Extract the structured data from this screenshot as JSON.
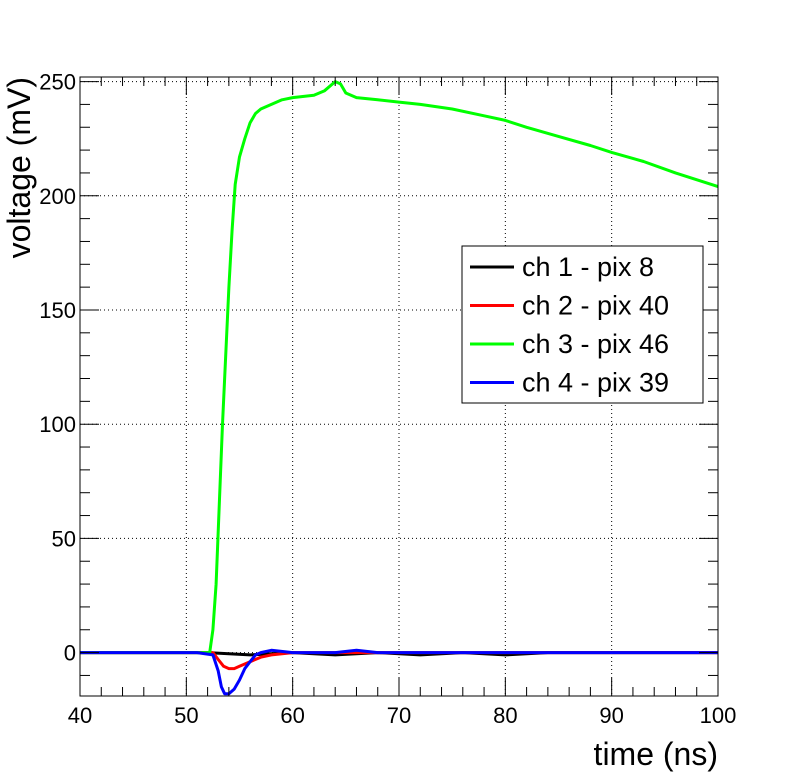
{
  "chart_data": {
    "type": "line",
    "title": "",
    "xlabel": "time (ns)",
    "ylabel": "voltage (mV)",
    "xlim": [
      40,
      100
    ],
    "ylim": [
      -19,
      252
    ],
    "x_ticks": [
      40,
      50,
      60,
      70,
      80,
      90,
      100
    ],
    "y_ticks": [
      0,
      50,
      100,
      150,
      200,
      250
    ],
    "grid": true,
    "grid_style": "dotted",
    "legend_position": "right, upper-middle",
    "series": [
      {
        "name": "ch 1 - pix 8",
        "color": "#000000",
        "x": [
          40,
          44,
          48,
          52,
          56,
          60,
          64,
          68,
          72,
          76,
          80,
          84,
          88,
          92,
          96,
          100
        ],
        "y": [
          0,
          0,
          0,
          0,
          -1,
          0,
          -1,
          0,
          -1,
          0,
          -1,
          0,
          0,
          0,
          0,
          0
        ]
      },
      {
        "name": "ch 2 - pix 40",
        "color": "#ff0000",
        "x": [
          40,
          44,
          48,
          51,
          52.5,
          53,
          53.5,
          54,
          54.5,
          55,
          56,
          57,
          58,
          60,
          64,
          68,
          72,
          76,
          80,
          84,
          88,
          92,
          96,
          100
        ],
        "y": [
          0,
          0,
          0,
          0,
          0,
          -3,
          -6,
          -7,
          -7,
          -6,
          -4,
          -2,
          -1,
          0,
          0,
          0,
          0,
          0,
          0,
          0,
          0,
          0,
          0,
          0
        ]
      },
      {
        "name": "ch 3 - pix 46",
        "color": "#00ff00",
        "x": [
          40,
          44,
          48,
          51,
          52.2,
          52.5,
          52.8,
          53.1,
          53.4,
          53.7,
          54,
          54.3,
          54.6,
          55,
          55.5,
          56,
          56.5,
          57,
          58,
          59,
          60,
          62,
          63,
          64,
          64.5,
          65,
          66,
          68,
          70,
          72,
          75,
          78,
          80,
          82,
          85,
          88,
          90,
          93,
          96,
          100
        ],
        "y": [
          0,
          0,
          0,
          0,
          0,
          10,
          30,
          65,
          100,
          130,
          160,
          185,
          205,
          217,
          225,
          232,
          236,
          238,
          240,
          242,
          243,
          244,
          246,
          250,
          249,
          245,
          243,
          242,
          241,
          240,
          238,
          235,
          233,
          230,
          226,
          222,
          219,
          215,
          210,
          204
        ]
      },
      {
        "name": "ch 4 - pix 39",
        "color": "#0000ff",
        "x": [
          40,
          44,
          48,
          51,
          52.5,
          53,
          53.3,
          53.6,
          54,
          54.5,
          55,
          55.5,
          56,
          56.5,
          57,
          58,
          60,
          64,
          66,
          68,
          72,
          76,
          80,
          84,
          88,
          92,
          96,
          100
        ],
        "y": [
          0,
          0,
          0,
          0,
          -1,
          -8,
          -15,
          -18,
          -18,
          -16,
          -12,
          -7,
          -4,
          -1,
          0,
          1,
          0,
          0,
          1,
          0,
          0,
          0,
          0,
          0,
          0,
          0,
          0,
          0
        ]
      }
    ]
  }
}
